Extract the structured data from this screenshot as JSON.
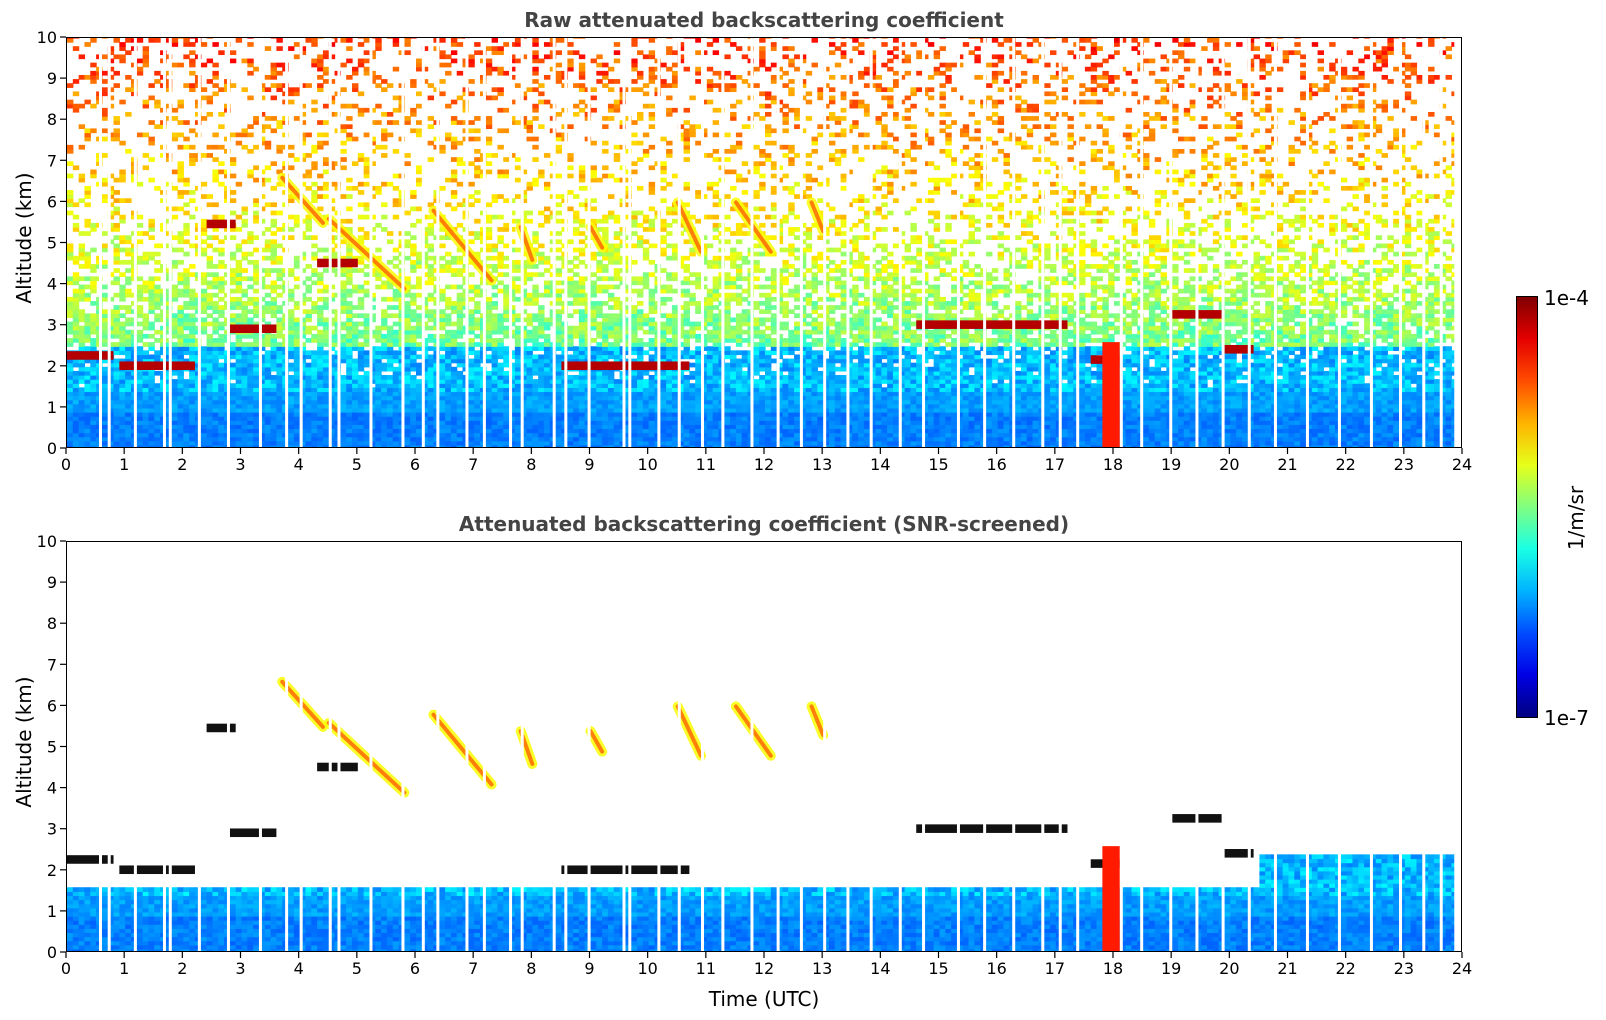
{
  "chart_data": [
    {
      "type": "heatmap",
      "title": "Raw attenuated backscattering coefficient",
      "xlabel": "",
      "ylabel": "Altitude (km)",
      "xlim": [
        0,
        24
      ],
      "ylim": [
        0,
        10
      ],
      "x_ticks": [
        "0",
        "1",
        "2",
        "3",
        "4",
        "5",
        "6",
        "7",
        "8",
        "9",
        "10",
        "11",
        "12",
        "13",
        "14",
        "15",
        "16",
        "17",
        "18",
        "19",
        "20",
        "21",
        "22",
        "23",
        "24"
      ],
      "y_ticks": [
        "0",
        "1",
        "2",
        "3",
        "4",
        "5",
        "6",
        "7",
        "8",
        "9",
        "10"
      ],
      "screened": false,
      "features": [
        {
          "kind": "boundary_layer",
          "top_km": 1.4
        },
        {
          "kind": "cloud_layer",
          "t_start": 0.0,
          "t_end": 0.8,
          "alt_km": 2.3
        },
        {
          "kind": "cloud_layer",
          "t_start": 0.9,
          "t_end": 2.2,
          "alt_km": 2.05
        },
        {
          "kind": "cloud_layer",
          "t_start": 2.4,
          "t_end": 2.9,
          "alt_km": 5.5
        },
        {
          "kind": "cloud_layer",
          "t_start": 2.8,
          "t_end": 3.6,
          "alt_km": 2.95
        },
        {
          "kind": "cloud_layer",
          "t_start": 4.3,
          "t_end": 5.0,
          "alt_km": 4.55
        },
        {
          "kind": "cloud_layer",
          "t_start": 8.5,
          "t_end": 10.7,
          "alt_km": 2.05
        },
        {
          "kind": "cloud_layer",
          "t_start": 14.6,
          "t_end": 17.2,
          "alt_km": 3.05
        },
        {
          "kind": "cloud_layer",
          "t_start": 17.6,
          "t_end": 18.1,
          "alt_km": 2.2
        },
        {
          "kind": "cloud_layer",
          "t_start": 19.0,
          "t_end": 19.9,
          "alt_km": 3.3
        },
        {
          "kind": "cloud_layer",
          "t_start": 19.9,
          "t_end": 20.4,
          "alt_km": 2.45
        }
      ]
    },
    {
      "type": "heatmap",
      "title": "Attenuated backscattering coefficient (SNR-screened)",
      "xlabel": "Time (UTC)",
      "ylabel": "Altitude (km)",
      "xlim": [
        0,
        24
      ],
      "ylim": [
        0,
        10
      ],
      "x_ticks": [
        "0",
        "1",
        "2",
        "3",
        "4",
        "5",
        "6",
        "7",
        "8",
        "9",
        "10",
        "11",
        "12",
        "13",
        "14",
        "15",
        "16",
        "17",
        "18",
        "19",
        "20",
        "21",
        "22",
        "23",
        "24"
      ],
      "y_ticks": [
        "0",
        "1",
        "2",
        "3",
        "4",
        "5",
        "6",
        "7",
        "8",
        "9",
        "10"
      ],
      "screened": true
    }
  ],
  "colorbar": {
    "min_label": "1e-7",
    "max_label": "1e-4",
    "unit": "1/m/sr",
    "scale": "log",
    "colormap": "jet"
  }
}
